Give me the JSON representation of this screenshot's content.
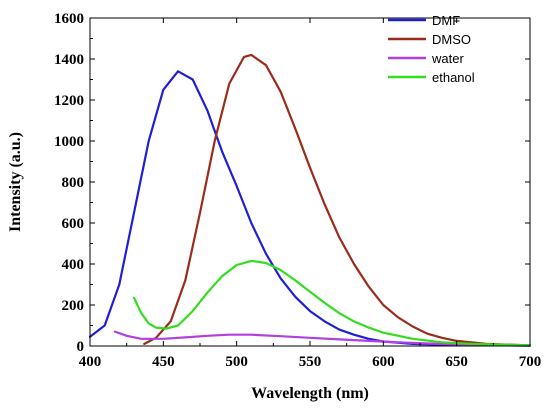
{
  "chart_data": {
    "type": "line",
    "xlabel": "Wavelength (nm)",
    "ylabel": "Intensity (a.u.)",
    "xlim": [
      400,
      700
    ],
    "ylim": [
      0,
      1600
    ],
    "xticks": [
      400,
      450,
      500,
      550,
      600,
      650,
      700
    ],
    "yticks": [
      0,
      200,
      400,
      600,
      800,
      1000,
      1200,
      1400,
      1600
    ],
    "grid": false,
    "legend_position": "top-right",
    "series": [
      {
        "name": "DMF",
        "color": "#1f1fd6",
        "points": [
          [
            400,
            45
          ],
          [
            410,
            100
          ],
          [
            420,
            300
          ],
          [
            430,
            650
          ],
          [
            440,
            1000
          ],
          [
            450,
            1250
          ],
          [
            460,
            1340
          ],
          [
            470,
            1300
          ],
          [
            480,
            1150
          ],
          [
            490,
            950
          ],
          [
            500,
            780
          ],
          [
            510,
            600
          ],
          [
            520,
            450
          ],
          [
            530,
            330
          ],
          [
            540,
            240
          ],
          [
            550,
            170
          ],
          [
            560,
            120
          ],
          [
            570,
            80
          ],
          [
            580,
            55
          ],
          [
            590,
            35
          ],
          [
            600,
            22
          ],
          [
            620,
            10
          ],
          [
            650,
            5
          ],
          [
            700,
            2
          ]
        ]
      },
      {
        "name": "DMSO",
        "color": "#9b2b1b",
        "points": [
          [
            437,
            10
          ],
          [
            445,
            40
          ],
          [
            455,
            120
          ],
          [
            465,
            320
          ],
          [
            475,
            650
          ],
          [
            485,
            1000
          ],
          [
            495,
            1280
          ],
          [
            505,
            1410
          ],
          [
            510,
            1420
          ],
          [
            520,
            1370
          ],
          [
            530,
            1240
          ],
          [
            540,
            1060
          ],
          [
            550,
            870
          ],
          [
            560,
            690
          ],
          [
            570,
            530
          ],
          [
            580,
            400
          ],
          [
            590,
            290
          ],
          [
            600,
            200
          ],
          [
            610,
            140
          ],
          [
            620,
            95
          ],
          [
            630,
            60
          ],
          [
            640,
            40
          ],
          [
            650,
            25
          ],
          [
            670,
            10
          ],
          [
            700,
            3
          ]
        ]
      },
      {
        "name": "water",
        "color": "#b040e0",
        "points": [
          [
            417,
            70
          ],
          [
            425,
            50
          ],
          [
            435,
            35
          ],
          [
            450,
            35
          ],
          [
            465,
            42
          ],
          [
            480,
            50
          ],
          [
            495,
            55
          ],
          [
            510,
            55
          ],
          [
            530,
            48
          ],
          [
            550,
            40
          ],
          [
            570,
            32
          ],
          [
            590,
            25
          ],
          [
            610,
            18
          ],
          [
            630,
            12
          ],
          [
            650,
            8
          ],
          [
            680,
            4
          ],
          [
            700,
            2
          ]
        ]
      },
      {
        "name": "ethanol",
        "color": "#33dd1e",
        "points": [
          [
            430,
            235
          ],
          [
            435,
            160
          ],
          [
            440,
            110
          ],
          [
            445,
            90
          ],
          [
            452,
            85
          ],
          [
            460,
            100
          ],
          [
            470,
            170
          ],
          [
            480,
            260
          ],
          [
            490,
            340
          ],
          [
            500,
            395
          ],
          [
            510,
            415
          ],
          [
            520,
            405
          ],
          [
            530,
            370
          ],
          [
            540,
            320
          ],
          [
            550,
            265
          ],
          [
            560,
            210
          ],
          [
            570,
            160
          ],
          [
            580,
            120
          ],
          [
            590,
            90
          ],
          [
            600,
            65
          ],
          [
            620,
            35
          ],
          [
            640,
            18
          ],
          [
            660,
            10
          ],
          [
            700,
            3
          ]
        ]
      }
    ]
  }
}
